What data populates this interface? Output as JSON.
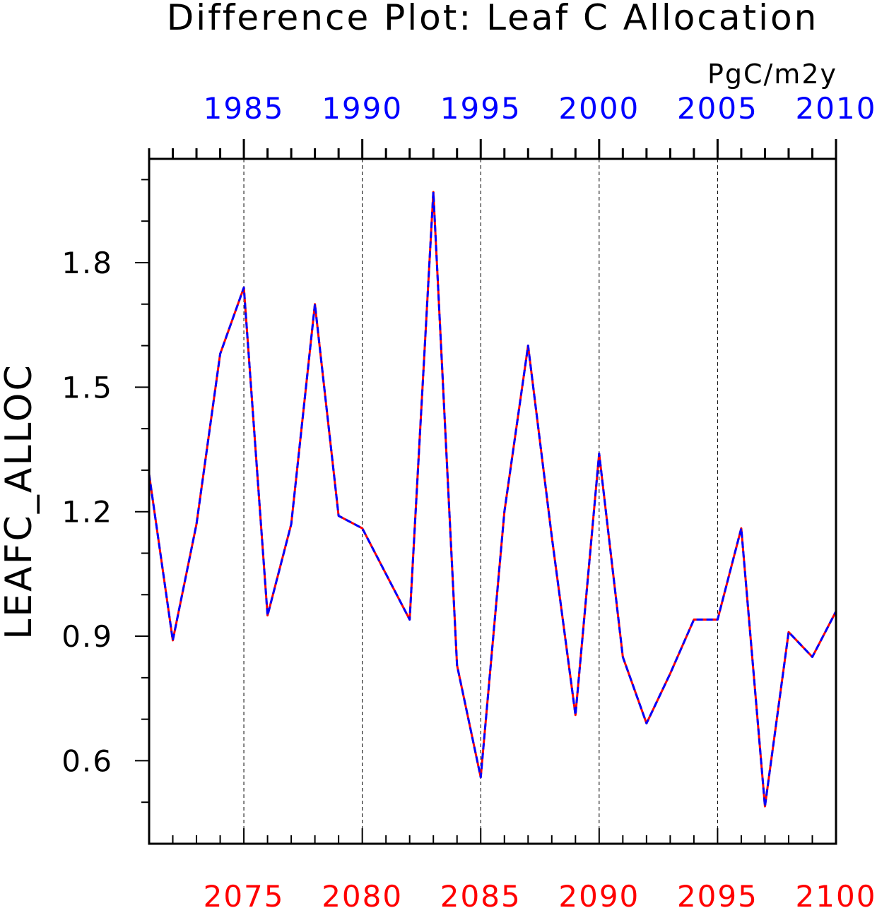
{
  "chart_data": {
    "type": "line",
    "title": "Difference Plot: Leaf C Allocation",
    "units": "PgC/m2y",
    "ylabel": "LEAFC_ALLOC",
    "ylim": [
      0.4,
      2.05
    ],
    "yticks": [
      0.6,
      0.9,
      1.2,
      1.5,
      1.8
    ],
    "ytick_labels": [
      "0.6",
      "0.9",
      "1.2",
      "1.5",
      "1.8"
    ],
    "x_bottom": {
      "range": [
        2071,
        2100
      ],
      "ticks": [
        2075,
        2080,
        2085,
        2090,
        2095,
        2100
      ],
      "tick_labels": [
        "2075",
        "2080",
        "2085",
        "2090",
        "2095",
        "2100"
      ],
      "color": "#ff0000"
    },
    "x_top": {
      "range": [
        1981,
        2010
      ],
      "ticks": [
        1985,
        1990,
        1995,
        2000,
        2005,
        2010
      ],
      "tick_labels": [
        "1985",
        "1990",
        "1995",
        "2000",
        "2005",
        "2010"
      ],
      "color": "#0000ff"
    },
    "grid": "vertical dashed at labeled bottom ticks",
    "x": [
      2071,
      2072,
      2073,
      2074,
      2075,
      2076,
      2077,
      2078,
      2079,
      2080,
      2081,
      2082,
      2083,
      2084,
      2085,
      2086,
      2087,
      2088,
      2089,
      2090,
      2091,
      2092,
      2093,
      2094,
      2095,
      2096,
      2097,
      2098,
      2099,
      2100
    ],
    "series": [
      {
        "color": "#ff0000",
        "style": "solid",
        "values": [
          1.29,
          0.89,
          1.17,
          1.58,
          1.74,
          0.95,
          1.17,
          1.7,
          1.19,
          1.16,
          1.05,
          0.94,
          1.97,
          0.83,
          0.56,
          1.2,
          1.6,
          1.14,
          0.71,
          1.34,
          0.85,
          0.69,
          0.81,
          0.94,
          0.94,
          1.16,
          0.49,
          0.91,
          0.85,
          0.96
        ]
      },
      {
        "color": "#0000ff",
        "style": "dashed",
        "values": [
          1.29,
          0.89,
          1.17,
          1.58,
          1.74,
          0.95,
          1.17,
          1.7,
          1.19,
          1.16,
          1.05,
          0.94,
          1.97,
          0.83,
          0.56,
          1.2,
          1.6,
          1.14,
          0.71,
          1.34,
          0.85,
          0.69,
          0.81,
          0.94,
          0.94,
          1.16,
          0.49,
          0.91,
          0.85,
          0.96
        ]
      }
    ]
  }
}
